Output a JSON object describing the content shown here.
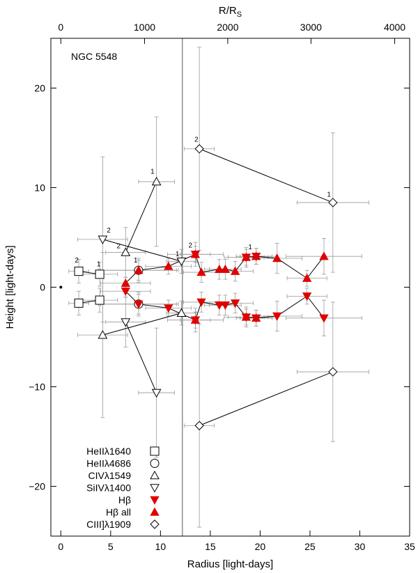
{
  "chart_data": {
    "type": "scatter",
    "title": "NGC 5548",
    "xlabel": "Radius  [light-days]",
    "ylabel": "Height  [light-days]",
    "top_xlabel": "R/R",
    "top_xlabel_sub": "S",
    "xlim": [
      -1,
      35
    ],
    "ylim": [
      -25,
      25
    ],
    "top_xlim": [
      -1,
      35
    ],
    "x_ticks": [
      0,
      5,
      10,
      15,
      20,
      25,
      30,
      35
    ],
    "y_ticks": [
      -20,
      -10,
      0,
      10,
      20
    ],
    "top_ticks": [
      {
        "label": "0",
        "x": 0
      },
      {
        "label": "1000",
        "x": 8.4
      },
      {
        "label": "2000",
        "x": 16.75
      },
      {
        "label": "3000",
        "x": 25.1
      },
      {
        "label": "4000",
        "x": 33.5
      }
    ],
    "vertical_line_x": 12.2,
    "origin_marker": {
      "x": 0,
      "y": 0
    },
    "annotations": [
      {
        "text": "2",
        "x": 1.6,
        "y": 2.5
      },
      {
        "text": "1",
        "x": 3.8,
        "y": 2.1
      },
      {
        "text": "1",
        "x": 7.5,
        "y": 2.5
      },
      {
        "text": "2",
        "x": 5.8,
        "y": 3.9
      },
      {
        "text": "1",
        "x": 9.2,
        "y": 11.4
      },
      {
        "text": "2",
        "x": 4.8,
        "y": 5.5
      },
      {
        "text": "1",
        "x": 11.7,
        "y": 3.1
      },
      {
        "text": "2",
        "x": 13.0,
        "y": 4.0
      },
      {
        "text": "1",
        "x": 19.0,
        "y": 3.8
      },
      {
        "text": "2",
        "x": 13.6,
        "y": 14.6
      },
      {
        "text": "1",
        "x": 26.9,
        "y": 9.1
      }
    ],
    "series": [
      {
        "name": "HeIIλ1640",
        "marker": "square",
        "color": "#000000",
        "connected": true,
        "points": [
          {
            "x": 1.8,
            "y": 1.6,
            "xerr": 1.0,
            "yerr": 1.2
          },
          {
            "x": 3.9,
            "y": 1.3,
            "xerr": 1.8,
            "yerr": 1.2
          }
        ]
      },
      {
        "name": "HeIIλ4686",
        "marker": "circle",
        "color": "#000000",
        "connected": false,
        "points": [
          {
            "x": 7.8,
            "y": 1.7,
            "xerr": 4.0,
            "yerr": 1.0
          }
        ]
      },
      {
        "name": "CIVλ1549",
        "marker": "triangle-up",
        "color": "#000000",
        "connected": true,
        "points": [
          {
            "x": 6.5,
            "y": 3.5,
            "xerr": 2.0,
            "yerr": 2.5
          },
          {
            "x": 9.6,
            "y": 10.6,
            "xerr": 1.8,
            "yerr": 6.5
          }
        ]
      },
      {
        "name": "SiIVλ1400",
        "marker": "triangle-down",
        "color": "#000000",
        "connected": true,
        "points": [
          {
            "x": 4.2,
            "y": 4.8,
            "xerr": 2.5,
            "yerr": 8.3
          },
          {
            "x": 12.1,
            "y": 2.6,
            "xerr": 1.5,
            "yerr": 1.2
          }
        ]
      },
      {
        "name": "Hβ",
        "marker": "triangle-down",
        "color": "#e00000",
        "filled": true,
        "connected": false,
        "points": [
          {
            "x": 13.5,
            "y": 3.3,
            "xerr": 1.5,
            "yerr": 0.8
          },
          {
            "x": 18.6,
            "y": 3.0,
            "xerr": 1.8,
            "yerr": 0.8
          },
          {
            "x": 19.6,
            "y": 3.1,
            "xerr": 1.6,
            "yerr": 0.8
          }
        ]
      },
      {
        "name": "Hβ all",
        "marker": "triangle-up",
        "color": "#e00000",
        "filled": true,
        "connected": true,
        "points": [
          {
            "x": 6.5,
            "y": 0.4,
            "xerr": 2.5,
            "yerr": 0.6
          },
          {
            "x": 7.8,
            "y": 1.7,
            "xerr": 3.8,
            "yerr": 1.2
          },
          {
            "x": 10.8,
            "y": 2.1,
            "xerr": 2.3,
            "yerr": 0.8
          },
          {
            "x": 13.5,
            "y": 3.3,
            "xerr": 2.8,
            "yerr": 1.2
          },
          {
            "x": 14.1,
            "y": 1.5,
            "xerr": 1.8,
            "yerr": 1.0
          },
          {
            "x": 15.9,
            "y": 1.8,
            "xerr": 1.5,
            "yerr": 1.0
          },
          {
            "x": 16.5,
            "y": 1.8,
            "xerr": 1.6,
            "yerr": 1.0
          },
          {
            "x": 17.5,
            "y": 1.6,
            "xerr": 1.8,
            "yerr": 1.0
          },
          {
            "x": 18.6,
            "y": 3.0,
            "xerr": 2.2,
            "yerr": 1.0
          },
          {
            "x": 19.6,
            "y": 3.1,
            "xerr": 2.0,
            "yerr": 0.8
          },
          {
            "x": 21.7,
            "y": 2.9,
            "xerr": 2.5,
            "yerr": 1.5
          },
          {
            "x": 24.7,
            "y": 0.9,
            "xerr": 2.0,
            "yerr": 0.8
          },
          {
            "x": 26.4,
            "y": 3.1,
            "xerr": 3.8,
            "yerr": 1.8
          }
        ]
      },
      {
        "name": "CIII]λ1909",
        "marker": "diamond",
        "color": "#000000",
        "connected": true,
        "points": [
          {
            "x": 13.9,
            "y": 13.9,
            "xerr": 1.5,
            "yerr": 10.2
          },
          {
            "x": 27.3,
            "y": 8.5,
            "xerr": 3.6,
            "yerr": 7.0
          }
        ]
      }
    ],
    "mirror_below_axis": true,
    "legend_position": "bottom-left"
  }
}
